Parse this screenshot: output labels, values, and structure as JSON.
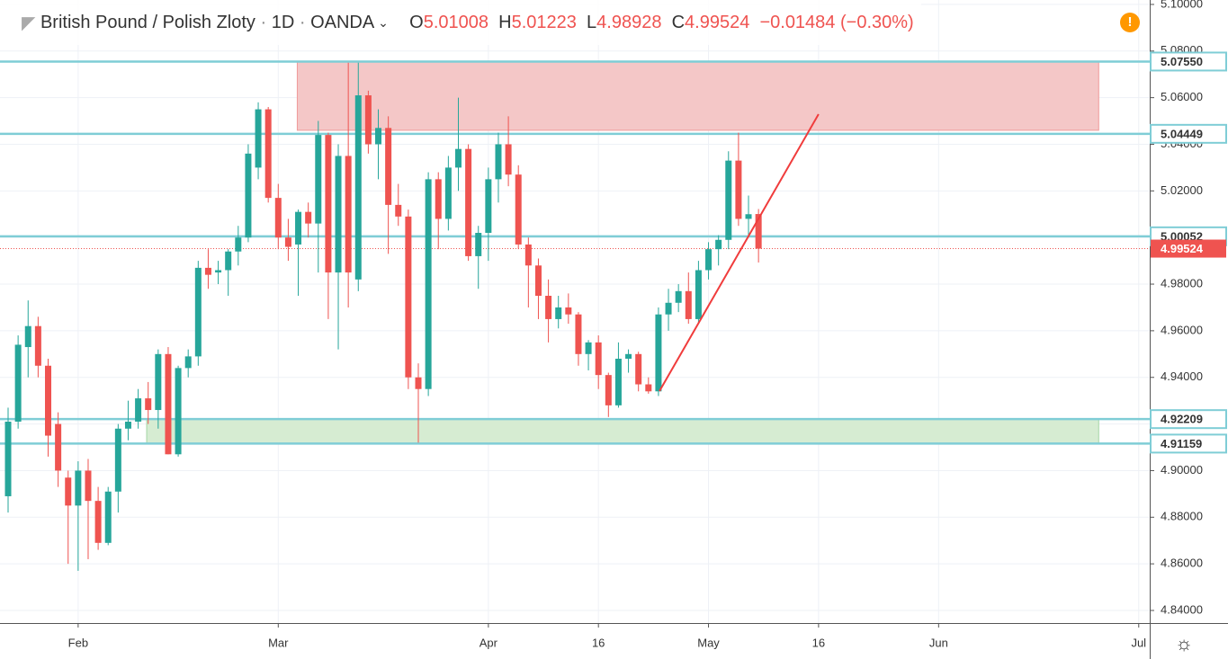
{
  "chart_data": {
    "type": "candlestick",
    "symbol": "British Pound / Polish Zloty",
    "interval": "1D",
    "source": "OANDA",
    "ohlc_letters": {
      "open": "O",
      "high": "H",
      "low": "L",
      "close": "C"
    },
    "change": "−0.01484",
    "change_pct": "(−0.30%)",
    "x": [
      0,
      1,
      2,
      3,
      4,
      5,
      6,
      7,
      8,
      9,
      10,
      11,
      12,
      13,
      14,
      15,
      16,
      17,
      18,
      19,
      20,
      21,
      22,
      23,
      24,
      25,
      26,
      27,
      28,
      29,
      30,
      31,
      32,
      33,
      34,
      35,
      36,
      37,
      38,
      39,
      40,
      41,
      42,
      43,
      44,
      45,
      46,
      47,
      48,
      49,
      50,
      51,
      52,
      53,
      54,
      55,
      56,
      57,
      58,
      59,
      60,
      61,
      62,
      63,
      64,
      65,
      66,
      67,
      68,
      69,
      70,
      71,
      72,
      73,
      74,
      75
    ],
    "open": [
      4.889,
      4.921,
      4.953,
      4.962,
      4.945,
      4.92,
      4.897,
      4.885,
      4.9,
      4.887,
      4.869,
      4.891,
      4.918,
      4.921,
      4.931,
      4.926,
      4.95,
      4.907,
      4.944,
      4.949,
      4.987,
      4.985,
      4.986,
      4.994,
      5.0,
      5.03,
      5.055,
      5.017,
      5.0,
      4.997,
      5.011,
      5.006,
      5.044,
      4.985,
      5.035,
      4.982,
      5.061,
      5.04,
      5.047,
      5.014,
      5.009,
      4.94,
      4.935,
      5.025,
      5.008,
      5.03,
      5.038,
      4.992,
      5.002,
      5.025,
      5.04,
      5.027,
      4.997,
      4.988,
      4.975,
      4.965,
      4.97,
      4.967,
      4.95,
      4.955,
      4.941,
      4.928,
      4.948,
      4.95,
      4.937,
      4.934,
      4.967,
      4.972,
      4.977,
      4.965,
      4.986,
      4.995,
      4.999,
      5.033,
      5.008,
      5.01008
    ],
    "high": [
      4.927,
      4.958,
      4.973,
      4.966,
      4.948,
      4.925,
      4.9,
      4.904,
      4.905,
      4.893,
      4.893,
      4.92,
      4.93,
      4.935,
      4.938,
      4.952,
      4.953,
      4.945,
      4.952,
      4.99,
      4.995,
      4.99,
      4.995,
      5.005,
      5.04,
      5.058,
      5.056,
      5.023,
      5.008,
      5.012,
      5.015,
      5.05,
      5.045,
      5.04,
      5.075,
      5.075,
      5.063,
      5.055,
      5.052,
      5.023,
      5.012,
      4.946,
      5.028,
      5.028,
      5.035,
      5.06,
      5.04,
      5.005,
      5.03,
      5.045,
      5.052,
      5.031,
      5.0,
      4.991,
      4.982,
      4.975,
      4.976,
      4.968,
      4.956,
      4.958,
      4.942,
      4.955,
      4.952,
      4.951,
      4.94,
      4.97,
      4.978,
      4.98,
      4.985,
      4.99,
      4.998,
      5.001,
      5.037,
      5.045,
      5.018,
      5.01223
    ],
    "low": [
      4.882,
      4.918,
      4.94,
      4.94,
      4.906,
      4.893,
      4.86,
      4.857,
      4.862,
      4.866,
      4.868,
      4.882,
      4.913,
      4.918,
      4.92,
      4.918,
      4.907,
      4.906,
      4.94,
      4.945,
      4.978,
      4.98,
      4.975,
      4.988,
      4.998,
      5.025,
      5.015,
      4.995,
      4.99,
      4.975,
      5.0,
      4.985,
      4.965,
      4.952,
      4.97,
      4.977,
      5.036,
      5.025,
      4.993,
      5.005,
      4.935,
      4.912,
      4.932,
      4.995,
      5.003,
      5.02,
      4.99,
      4.978,
      4.99,
      5.015,
      5.022,
      4.995,
      4.97,
      4.965,
      4.955,
      4.961,
      4.963,
      4.945,
      4.943,
      4.935,
      4.923,
      4.927,
      4.942,
      4.934,
      4.933,
      4.932,
      4.96,
      4.968,
      4.963,
      4.963,
      4.982,
      4.988,
      4.995,
      5.005,
      5.0,
      4.98928
    ],
    "close": [
      4.921,
      4.954,
      4.962,
      4.945,
      4.915,
      4.9,
      4.885,
      4.9,
      4.887,
      4.869,
      4.891,
      4.918,
      4.921,
      4.931,
      4.926,
      4.95,
      4.907,
      4.944,
      4.949,
      4.987,
      4.984,
      4.986,
      4.994,
      5.0,
      5.036,
      5.055,
      5.017,
      5.0,
      4.996,
      5.011,
      5.006,
      5.044,
      4.985,
      5.035,
      4.985,
      5.061,
      5.04,
      5.047,
      5.014,
      5.009,
      4.94,
      4.935,
      5.025,
      5.008,
      5.03,
      5.038,
      4.992,
      5.002,
      5.025,
      5.04,
      5.027,
      4.997,
      4.988,
      4.975,
      4.965,
      4.97,
      4.967,
      4.95,
      4.955,
      4.941,
      4.928,
      4.948,
      4.95,
      4.937,
      4.934,
      4.967,
      4.972,
      4.977,
      4.965,
      4.986,
      4.995,
      4.999,
      5.033,
      5.008,
      5.01,
      4.99524
    ],
    "up_color": "#26a69a",
    "down_color": "#ef5350",
    "xlim": [
      -0.81,
      114.1
    ],
    "xticks": [
      {
        "value": 7,
        "label": "Feb"
      },
      {
        "value": 27,
        "label": "Mar"
      },
      {
        "value": 48,
        "label": "Apr"
      },
      {
        "value": 59,
        "label": "16"
      },
      {
        "value": 70,
        "label": "May"
      },
      {
        "value": 81,
        "label": "16"
      },
      {
        "value": 93,
        "label": "Jun"
      },
      {
        "value": 113,
        "label": "Jul"
      }
    ],
    "ylim": [
      4.8346,
      5.1019
    ],
    "yticks": [
      {
        "value": 4.84,
        "label": "4.84000"
      },
      {
        "value": 4.86,
        "label": "4.86000"
      },
      {
        "value": 4.88,
        "label": "4.88000"
      },
      {
        "value": 4.9,
        "label": "4.90000"
      },
      {
        "value": 4.92,
        "label": "4.92000"
      },
      {
        "value": 4.94,
        "label": "4.94000"
      },
      {
        "value": 4.96,
        "label": "4.96000"
      },
      {
        "value": 4.98,
        "label": "4.98000"
      },
      {
        "value": 5.0,
        "label": "5.00000"
      },
      {
        "value": 5.02,
        "label": "5.02000"
      },
      {
        "value": 5.04,
        "label": "5.04000"
      },
      {
        "value": 5.06,
        "label": "5.06000"
      },
      {
        "value": 5.08,
        "label": "5.08000"
      },
      {
        "value": 5.1,
        "label": "5.10000"
      }
    ],
    "grid": true,
    "levels": [
      {
        "value": 5.0755,
        "label": "5.07550"
      },
      {
        "value": 5.04449,
        "label": "5.04449"
      },
      {
        "value": 5.00052,
        "label": "5.00052"
      },
      {
        "value": 4.92209,
        "label": "4.92209"
      },
      {
        "value": 4.91159,
        "label": "4.91159"
      }
    ],
    "level_color": "#7fcdd6",
    "last_price": {
      "value": 4.99524,
      "label": "4.99524"
    },
    "zones": [
      {
        "x": [
          28.9,
          109
        ],
        "y": [
          5.046,
          5.0755
        ],
        "color": "#f4c7c7"
      },
      {
        "x": [
          13.85,
          109
        ],
        "y": [
          4.91159,
          4.92209
        ],
        "color": "#d6ecd2"
      }
    ],
    "trendline": {
      "x": [
        65.1,
        81
      ],
      "y": [
        4.9341,
        5.0529
      ],
      "color": "#f03c3c"
    }
  }
}
